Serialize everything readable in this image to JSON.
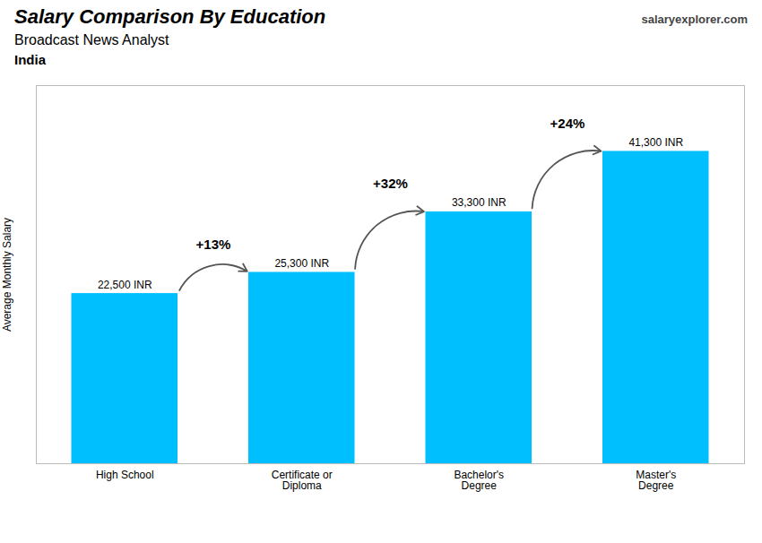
{
  "chart_data": {
    "type": "bar",
    "title": "Salary Comparison By Education",
    "subtitle": "Broadcast News Analyst",
    "ylabel": "Average Monthly Salary",
    "categories": [
      "High School",
      "Certificate or\nDiploma",
      "Bachelor's\nDegree",
      "Master's\nDegree"
    ],
    "values": [
      22500,
      25300,
      33300,
      41300
    ],
    "value_labels": [
      "22,500 INR",
      "25,300 INR",
      "33,300 INR",
      "41,300 INR"
    ],
    "data_labels": true,
    "color": "#00bfff",
    "ylim": [
      0,
      50000
    ],
    "yticks": [],
    "tick_labels": "x",
    "grid": false,
    "annotations": [
      {
        "text": "India"
      },
      {
        "text": "salaryexplorer.com"
      },
      {
        "text": "+13%",
        "from": "High School",
        "to": "Certificate or\nDiploma"
      },
      {
        "text": "+32%",
        "from": "Certificate or\nDiploma",
        "to": "Bachelor's\nDegree"
      },
      {
        "text": "+24%",
        "from": "Bachelor's\nDegree",
        "to": "Master's\nDegree"
      }
    ]
  }
}
